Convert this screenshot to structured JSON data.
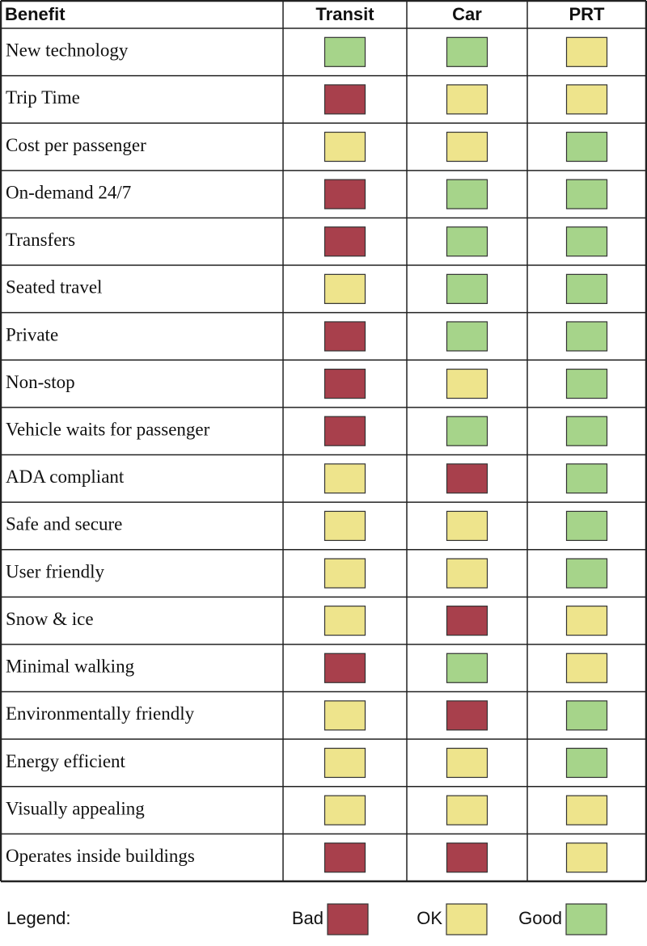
{
  "table": {
    "columns": [
      "Benefit",
      "Transit",
      "Car",
      "PRT"
    ],
    "rows": [
      {
        "benefit": "New technology",
        "ratings": [
          2,
          2,
          1
        ]
      },
      {
        "benefit": "Trip Time",
        "ratings": [
          0,
          1,
          1
        ]
      },
      {
        "benefit": "Cost per passenger",
        "ratings": [
          1,
          1,
          2
        ]
      },
      {
        "benefit": "On-demand 24/7",
        "ratings": [
          0,
          2,
          2
        ]
      },
      {
        "benefit": "Transfers",
        "ratings": [
          0,
          2,
          2
        ]
      },
      {
        "benefit": "Seated travel",
        "ratings": [
          1,
          2,
          2
        ]
      },
      {
        "benefit": "Private",
        "ratings": [
          0,
          2,
          2
        ]
      },
      {
        "benefit": "Non-stop",
        "ratings": [
          0,
          1,
          2
        ]
      },
      {
        "benefit": "Vehicle waits for passenger",
        "ratings": [
          0,
          2,
          2
        ]
      },
      {
        "benefit": "ADA compliant",
        "ratings": [
          1,
          0,
          2
        ]
      },
      {
        "benefit": "Safe and secure",
        "ratings": [
          1,
          1,
          2
        ]
      },
      {
        "benefit": "User friendly",
        "ratings": [
          1,
          1,
          2
        ]
      },
      {
        "benefit": "Snow & ice",
        "ratings": [
          1,
          0,
          1
        ]
      },
      {
        "benefit": "Minimal walking",
        "ratings": [
          0,
          2,
          1
        ]
      },
      {
        "benefit": "Environmentally friendly",
        "ratings": [
          1,
          0,
          2
        ]
      },
      {
        "benefit": "Energy efficient",
        "ratings": [
          1,
          1,
          2
        ]
      },
      {
        "benefit": "Visually appealing",
        "ratings": [
          1,
          1,
          1
        ]
      },
      {
        "benefit": "Operates inside buildings",
        "ratings": [
          0,
          0,
          1
        ]
      }
    ]
  },
  "legend": {
    "title": "Legend:",
    "items": [
      {
        "label": "Bad",
        "color": "#a8404c"
      },
      {
        "label": "OK",
        "color": "#eee48c"
      },
      {
        "label": "Good",
        "color": "#a6d48a"
      }
    ]
  }
}
